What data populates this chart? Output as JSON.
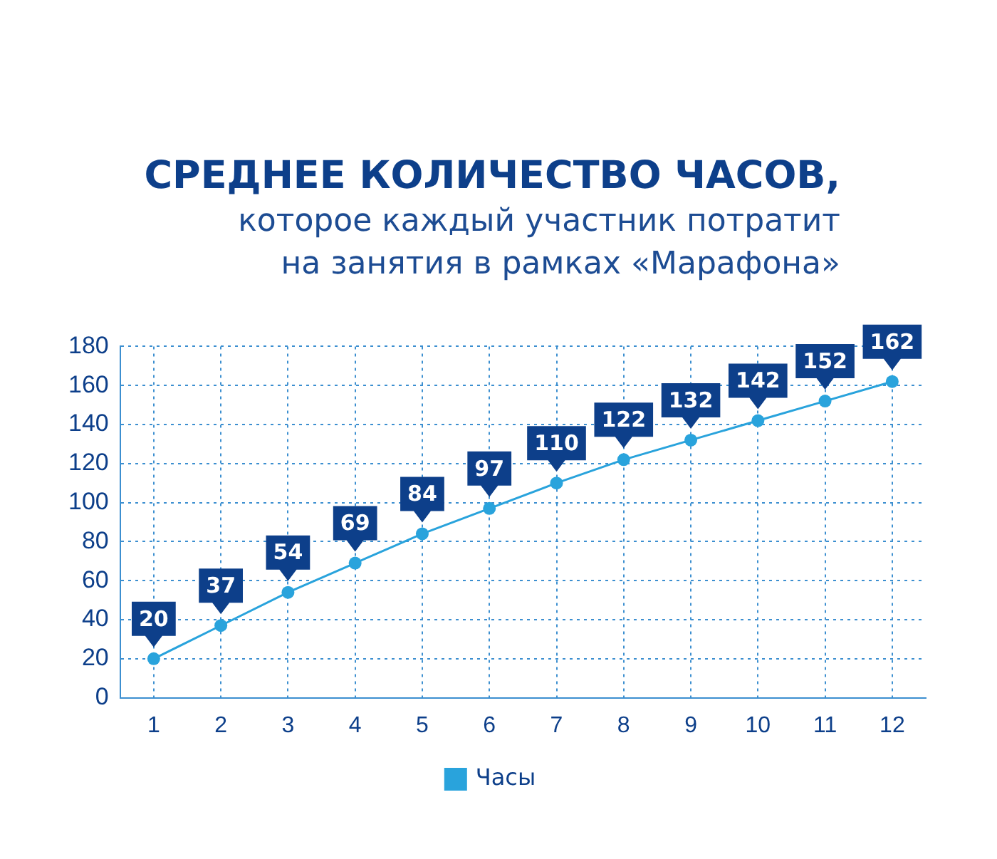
{
  "chart_data": {
    "type": "line",
    "title": "СРЕДНЕЕ КОЛИЧЕСТВО ЧАСОВ,",
    "subtitle": "которое каждый участник потратит на занятия в рамках «Марафона»",
    "x": [
      1,
      2,
      3,
      4,
      5,
      6,
      7,
      8,
      9,
      10,
      11,
      12
    ],
    "xlim": [
      0.5,
      12.5
    ],
    "xticks": [
      1,
      2,
      3,
      4,
      5,
      6,
      7,
      8,
      9,
      10,
      11,
      12
    ],
    "series": [
      {
        "name": "Часы",
        "color": "#29a3dc",
        "values": [
          20,
          37,
          54,
          69,
          84,
          97,
          110,
          122,
          132,
          142,
          152,
          162
        ]
      }
    ],
    "ylim": [
      0,
      180
    ],
    "yticks": [
      0,
      20,
      40,
      60,
      80,
      100,
      120,
      140,
      160,
      180
    ],
    "grid": true,
    "legend": "bottom",
    "marker": "circle",
    "line_style": "solid",
    "data_labels": true
  }
}
